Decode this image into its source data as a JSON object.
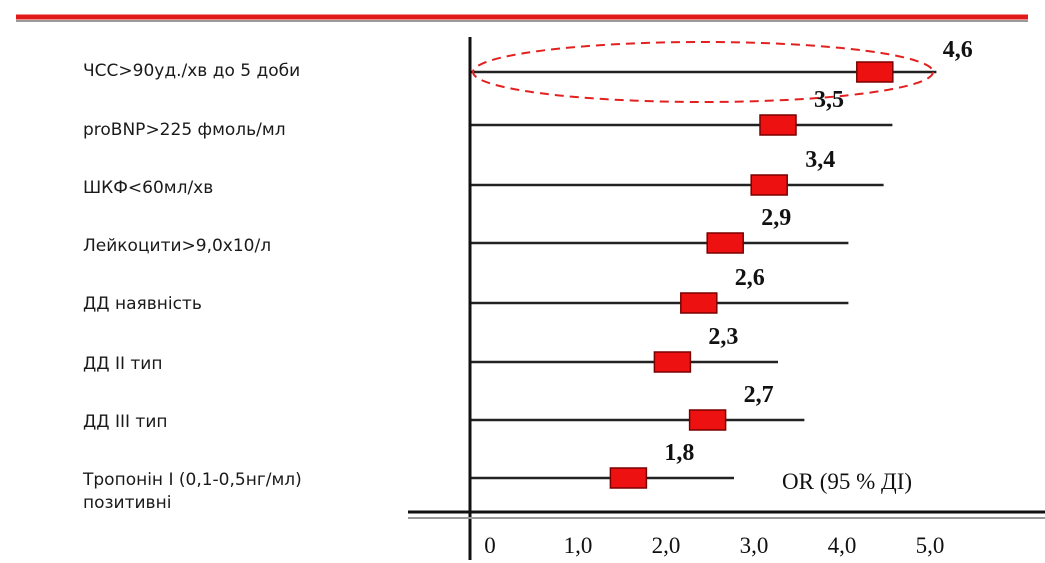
{
  "colors": {
    "top_rule": "#e11a1a",
    "marker": "#ee1111",
    "ellipse": "#e32020",
    "axis": "#111111",
    "ci_line": "#222222"
  },
  "chart_data": {
    "type": "forest",
    "title": "",
    "xlabel": "OR (95 % ДІ)",
    "x_tick_labels": [
      "0",
      "1,0",
      "2,0",
      "3,0",
      "4,0",
      "5,0"
    ],
    "highlighted_row": 0,
    "rows": [
      {
        "label": "ЧСС>90уд./хв до 5 доби",
        "or": 4.6,
        "or_label": "4,6",
        "ci": [
          0.0,
          5.3
        ]
      },
      {
        "label": "proBNP>225 фмоль/мл",
        "or": 3.5,
        "or_label": "3,5",
        "ci": [
          0.0,
          4.8
        ]
      },
      {
        "label": "ШКФ<60мл/хв",
        "or": 3.4,
        "or_label": "3,4",
        "ci": [
          0.0,
          4.7
        ]
      },
      {
        "label": "Лейкоцити>9,0х10/л",
        "or": 2.9,
        "or_label": "2,9",
        "ci": [
          0.0,
          4.3
        ]
      },
      {
        "label": "ДД наявність",
        "or": 2.6,
        "or_label": "2,6",
        "ci": [
          0.0,
          4.3
        ]
      },
      {
        "label": "ДД ІІ тип",
        "or": 2.3,
        "or_label": "2,3",
        "ci": [
          0.0,
          3.5
        ]
      },
      {
        "label": "ДД ІІІ тип",
        "or": 2.7,
        "or_label": "2,7",
        "ci": [
          0.0,
          3.8
        ]
      },
      {
        "label": "Тропонін І (0,1-0,5нг/мл)",
        "label_line2": "позитивні",
        "or": 1.8,
        "or_label": "1,8",
        "ci": [
          0.0,
          3.0
        ]
      }
    ]
  }
}
